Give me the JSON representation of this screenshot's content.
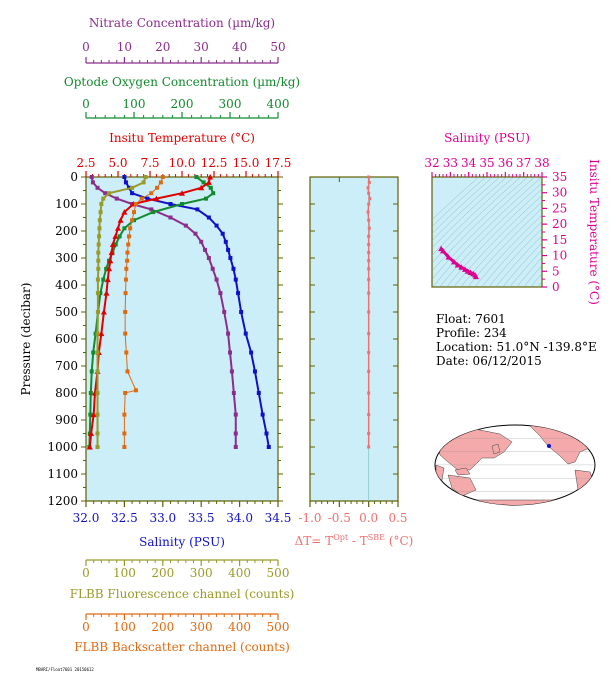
{
  "chart_data": [
    {
      "panel": "profile",
      "type": "line",
      "y_axis": {
        "label": "Pressure (decibar)",
        "ticks": [
          "0",
          "100",
          "200",
          "300",
          "400",
          "500",
          "600",
          "700",
          "800",
          "900",
          "1000",
          "1100",
          "1200"
        ],
        "range": [
          0,
          1200
        ],
        "inverted": true
      },
      "top_axes": [
        {
          "label": "Nitrate Concentration (µm/kg)",
          "range": [
            0,
            50
          ],
          "ticks": [
            "0",
            "10",
            "20",
            "30",
            "40",
            "50"
          ],
          "color": "#8B2D8B"
        },
        {
          "label": "Optode Oxygen Concentration (µm/kg)",
          "range": [
            0,
            400
          ],
          "ticks": [
            "0",
            "100",
            "200",
            "300",
            "400"
          ],
          "color": "#138A2E"
        },
        {
          "label": "Insitu Temperature (°C)",
          "range": [
            2.5,
            17.5
          ],
          "ticks": [
            "2.5",
            "5.0",
            "7.5",
            "10.0",
            "12.5",
            "15.0",
            "17.5"
          ],
          "color": "#E00000"
        }
      ],
      "bottom_axes": [
        {
          "label": "Salinity (PSU)",
          "range": [
            32.0,
            34.5
          ],
          "ticks": [
            "32.0",
            "32.5",
            "33.0",
            "33.5",
            "34.0",
            "34.5"
          ],
          "color": "#1010C8"
        },
        {
          "label": "FLBB Fluorescence channel (counts)",
          "range": [
            0,
            500
          ],
          "ticks": [
            "0",
            "100",
            "200",
            "300",
            "400",
            "500"
          ],
          "color": "#9A9A2A"
        },
        {
          "label": "FLBB Backscatter channel (counts)",
          "range": [
            0,
            500
          ],
          "ticks": [
            "0",
            "100",
            "200",
            "300",
            "400",
            "500"
          ],
          "color": "#E06A10"
        }
      ],
      "series": [
        {
          "name": "Salinity",
          "axis": "Salinity (PSU)",
          "color": "#1010C8",
          "points": [
            [
              32.5,
              0
            ],
            [
              32.52,
              20
            ],
            [
              32.56,
              40
            ],
            [
              32.6,
              60
            ],
            [
              32.8,
              80
            ],
            [
              33.1,
              100
            ],
            [
              33.45,
              120
            ],
            [
              33.6,
              150
            ],
            [
              33.7,
              180
            ],
            [
              33.78,
              210
            ],
            [
              33.82,
              240
            ],
            [
              33.85,
              270
            ],
            [
              33.88,
              300
            ],
            [
              33.92,
              340
            ],
            [
              33.95,
              380
            ],
            [
              33.98,
              430
            ],
            [
              34.02,
              500
            ],
            [
              34.08,
              580
            ],
            [
              34.15,
              650
            ],
            [
              34.2,
              720
            ],
            [
              34.25,
              800
            ],
            [
              34.3,
              880
            ],
            [
              34.35,
              950
            ],
            [
              34.38,
              1000
            ]
          ]
        },
        {
          "name": "Nitrate",
          "axis": "Nitrate Concentration (µm/kg)",
          "color": "#8B2D8B",
          "points": [
            [
              1.5,
              0
            ],
            [
              1.8,
              20
            ],
            [
              3,
              40
            ],
            [
              5,
              60
            ],
            [
              8,
              80
            ],
            [
              12,
              100
            ],
            [
              17,
              120
            ],
            [
              22,
              150
            ],
            [
              26,
              180
            ],
            [
              28.5,
              210
            ],
            [
              30,
              240
            ],
            [
              31,
              270
            ],
            [
              32,
              300
            ],
            [
              33,
              340
            ],
            [
              34,
              380
            ],
            [
              35,
              430
            ],
            [
              36,
              500
            ],
            [
              37,
              580
            ],
            [
              37.5,
              650
            ],
            [
              38,
              720
            ],
            [
              38.5,
              800
            ],
            [
              39,
              880
            ],
            [
              39,
              950
            ],
            [
              39,
              1000
            ]
          ]
        },
        {
          "name": "Oxygen",
          "axis": "Optode Oxygen Concentration (µm/kg)",
          "color": "#138A2E",
          "points": [
            [
              230,
              0
            ],
            [
              245,
              20
            ],
            [
              260,
              40
            ],
            [
              265,
              60
            ],
            [
              250,
              80
            ],
            [
              200,
              100
            ],
            [
              140,
              130
            ],
            [
              100,
              160
            ],
            [
              80,
              190
            ],
            [
              70,
              220
            ],
            [
              62,
              250
            ],
            [
              55,
              280
            ],
            [
              48,
              310
            ],
            [
              42,
              340
            ],
            [
              36,
              380
            ],
            [
              30,
              430
            ],
            [
              25,
              500
            ],
            [
              20,
              580
            ],
            [
              15,
              650
            ],
            [
              12,
              720
            ],
            [
              10,
              800
            ],
            [
              9,
              880
            ],
            [
              8,
              950
            ],
            [
              7,
              1000
            ]
          ]
        },
        {
          "name": "Temperature",
          "axis": "Insitu Temperature (°C)",
          "color": "#E00000",
          "points": [
            [
              12.2,
              0
            ],
            [
              12.1,
              20
            ],
            [
              11.5,
              40
            ],
            [
              10,
              60
            ],
            [
              8,
              80
            ],
            [
              6.2,
              100
            ],
            [
              5.5,
              130
            ],
            [
              5.2,
              160
            ],
            [
              5.0,
              190
            ],
            [
              4.8,
              220
            ],
            [
              4.6,
              250
            ],
            [
              4.5,
              280
            ],
            [
              4.4,
              310
            ],
            [
              4.3,
              340
            ],
            [
              4.2,
              380
            ],
            [
              4.1,
              430
            ],
            [
              3.9,
              500
            ],
            [
              3.7,
              580
            ],
            [
              3.5,
              650
            ],
            [
              3.4,
              720
            ],
            [
              3.2,
              800
            ],
            [
              3.1,
              880
            ],
            [
              2.9,
              950
            ],
            [
              2.8,
              1000
            ]
          ]
        },
        {
          "name": "Fluorescence",
          "axis": "FLBB Fluorescence channel (counts)",
          "color": "#9A9A2A",
          "points": [
            [
              155,
              0
            ],
            [
              150,
              20
            ],
            [
              120,
              40
            ],
            [
              60,
              60
            ],
            [
              45,
              80
            ],
            [
              40,
              100
            ],
            [
              38,
              130
            ],
            [
              36,
              160
            ],
            [
              35,
              190
            ],
            [
              34,
              220
            ],
            [
              33,
              250
            ],
            [
              32,
              280
            ],
            [
              32,
              310
            ],
            [
              32,
              340
            ],
            [
              31,
              380
            ],
            [
              31,
              430
            ],
            [
              31,
              500
            ],
            [
              30,
              580
            ],
            [
              30,
              650
            ],
            [
              30,
              720
            ],
            [
              30,
              800
            ],
            [
              30,
              880
            ],
            [
              30,
              950
            ],
            [
              30,
              1000
            ]
          ]
        },
        {
          "name": "Backscatter",
          "axis": "FLBB Backscatter channel (counts)",
          "color": "#E06A10",
          "points": [
            [
              200,
              0
            ],
            [
              195,
              20
            ],
            [
              185,
              40
            ],
            [
              170,
              60
            ],
            [
              145,
              80
            ],
            [
              130,
              100
            ],
            [
              125,
              130
            ],
            [
              120,
              160
            ],
            [
              115,
              190
            ],
            [
              112,
              220
            ],
            [
              110,
              250
            ],
            [
              108,
              280
            ],
            [
              107,
              310
            ],
            [
              105,
              340
            ],
            [
              104,
              380
            ],
            [
              103,
              430
            ],
            [
              102,
              500
            ],
            [
              102,
              580
            ],
            [
              105,
              650
            ],
            [
              108,
              720
            ],
            [
              130,
              790
            ],
            [
              102,
              800
            ],
            [
              100,
              880
            ],
            [
              100,
              950
            ],
            [
              100,
              1000
            ]
          ]
        }
      ]
    },
    {
      "panel": "delta_t",
      "type": "line",
      "xlabel": "ΔT= T",
      "xlabel_sup1": "Opt",
      "xlabel_mid": " - T",
      "xlabel_sup2": "SBE",
      "xlabel_unit": " (°C)",
      "range": [
        -1.0,
        0.5
      ],
      "ticks": [
        "-1.0",
        "-0.5",
        "0.0",
        "0.5"
      ],
      "color": "#F07070",
      "points": [
        [
          0.0,
          0
        ],
        [
          0.01,
          20
        ],
        [
          -0.01,
          40
        ],
        [
          0.0,
          60
        ],
        [
          0.02,
          80
        ],
        [
          0.0,
          100
        ],
        [
          -0.01,
          130
        ],
        [
          0.0,
          160
        ],
        [
          0.01,
          190
        ],
        [
          0.0,
          220
        ],
        [
          0.0,
          250
        ],
        [
          0.0,
          280
        ],
        [
          0.0,
          310
        ],
        [
          0.0,
          340
        ],
        [
          0.0,
          380
        ],
        [
          0.0,
          430
        ],
        [
          0.0,
          500
        ],
        [
          0.0,
          580
        ],
        [
          0.0,
          650
        ],
        [
          0.0,
          720
        ],
        [
          0.0,
          800
        ],
        [
          0.0,
          880
        ],
        [
          0.0,
          950
        ],
        [
          0.0,
          1000
        ]
      ]
    },
    {
      "panel": "ts",
      "type": "scatter",
      "xlabel": "Salinity (PSU)",
      "xlim": [
        32,
        38
      ],
      "x_ticks": [
        "32",
        "33",
        "34",
        "35",
        "36",
        "37",
        "38"
      ],
      "ylabel": "Insitu Temperature (°C)",
      "ylim": [
        0,
        35
      ],
      "y_ticks": [
        "0",
        "5",
        "10",
        "15",
        "20",
        "25",
        "30",
        "35"
      ],
      "color": "#DD0090",
      "points": [
        [
          32.5,
          12.2
        ],
        [
          32.6,
          11.5
        ],
        [
          32.9,
          9.5
        ],
        [
          33.2,
          8.0
        ],
        [
          33.4,
          7.0
        ],
        [
          33.6,
          6.3
        ],
        [
          33.8,
          5.6
        ],
        [
          33.95,
          5.0
        ],
        [
          34.1,
          4.6
        ],
        [
          34.25,
          4.2
        ],
        [
          34.35,
          3.8
        ],
        [
          34.4,
          3.3
        ]
      ]
    }
  ],
  "float_info": {
    "float": "Float:  7601",
    "profile": "Profile:  234",
    "location": "Location:  51.0°N  -139.8°E",
    "date": "Date:  06/12/2015"
  },
  "footnote": "MBARI/Float7601 20150612",
  "map": {
    "marker": "float-location"
  },
  "colors": {
    "panel_bg": "#CCEEF8",
    "frame": "#606000"
  }
}
